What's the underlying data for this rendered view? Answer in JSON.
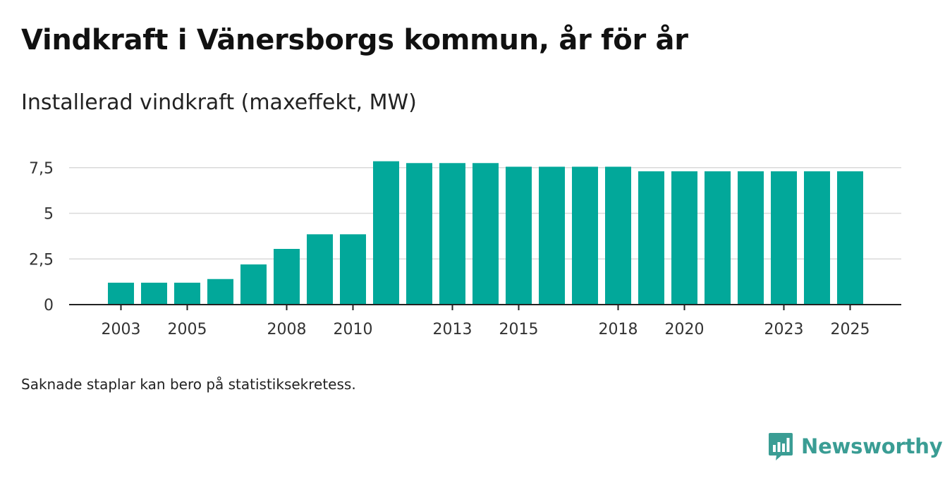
{
  "colors": {
    "bar": "#02a89a",
    "grid": "#d9d9d9",
    "axis": "#222222",
    "brand": "#3a9d94"
  },
  "chart_data": {
    "type": "bar",
    "title": "Vindkraft i Vänersborgs kommun, år för år",
    "subtitle": "Installerad vindkraft (maxeffekt, MW)",
    "xlabel": "",
    "ylabel": "Installerad vindkraft (maxeffekt, MW)",
    "categories": [
      "2003",
      "2004",
      "2005",
      "2006",
      "2007",
      "2008",
      "2009",
      "2010",
      "2011",
      "2012",
      "2013",
      "2014",
      "2015",
      "2016",
      "2017",
      "2018",
      "2019",
      "2020",
      "2021",
      "2022",
      "2023",
      "2024",
      "2025"
    ],
    "values": [
      1.2,
      1.2,
      1.2,
      1.4,
      2.2,
      3.05,
      3.85,
      3.85,
      7.85,
      7.75,
      7.75,
      7.75,
      7.55,
      7.55,
      7.55,
      7.55,
      7.3,
      7.3,
      7.3,
      7.3,
      7.3,
      7.3,
      7.3
    ],
    "ylim": [
      0,
      7.5
    ],
    "yticks": [
      0,
      2.5,
      5,
      7.5
    ],
    "ytick_labels": [
      "0",
      "2,5",
      "5",
      "7,5"
    ],
    "xtick_labels": [
      "2003",
      "2005",
      "2008",
      "2010",
      "2013",
      "2015",
      "2018",
      "2020",
      "2023",
      "2025"
    ],
    "grid": true,
    "legend": "none"
  },
  "footnote": "Saknade staplar kan bero på statistiksekretess.",
  "brand": {
    "name": "Newsworthy",
    "icon": "newsworthy-logo-icon"
  }
}
